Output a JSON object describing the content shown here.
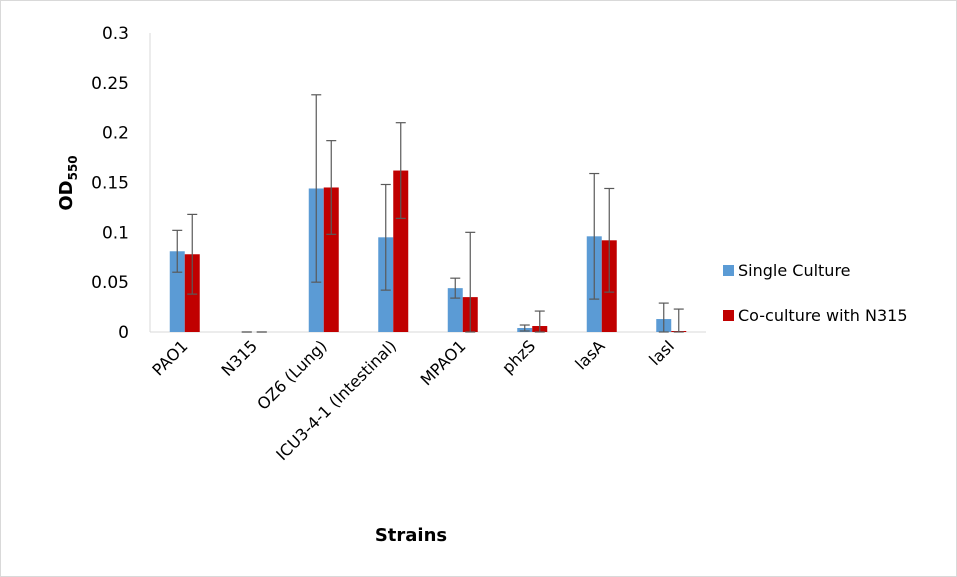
{
  "chart_data": {
    "type": "bar",
    "xlabel": "Strains",
    "ylabel": "OD",
    "ylabel_subscript": "550",
    "ylim": [
      0,
      0.3
    ],
    "yticks": [
      "0",
      "0.05",
      "0.1",
      "0.15",
      "0.2",
      "0.25",
      "0.3"
    ],
    "categories": [
      "PAO1",
      "N315",
      "OZ6 (Lung)",
      "ICU3-4-1 (Intestinal)",
      "MPAO1",
      "phzS",
      "lasA",
      "lasI"
    ],
    "legend_position": "right",
    "grid": false,
    "series": [
      {
        "name": "Single Culture",
        "color": "#5b9bd5",
        "values": [
          0.081,
          0.0,
          0.144,
          0.095,
          0.044,
          0.004,
          0.096,
          0.013
        ],
        "errors": [
          0.021,
          0.0,
          0.094,
          0.053,
          0.01,
          0.003,
          0.063,
          0.016
        ]
      },
      {
        "name": "Co-culture with N315",
        "color": "#c00000",
        "values": [
          0.078,
          0.0,
          0.145,
          0.162,
          0.035,
          0.006,
          0.092,
          0.001
        ],
        "errors": [
          0.04,
          0.0,
          0.047,
          0.048,
          0.065,
          0.015,
          0.052,
          0.022
        ]
      }
    ]
  }
}
